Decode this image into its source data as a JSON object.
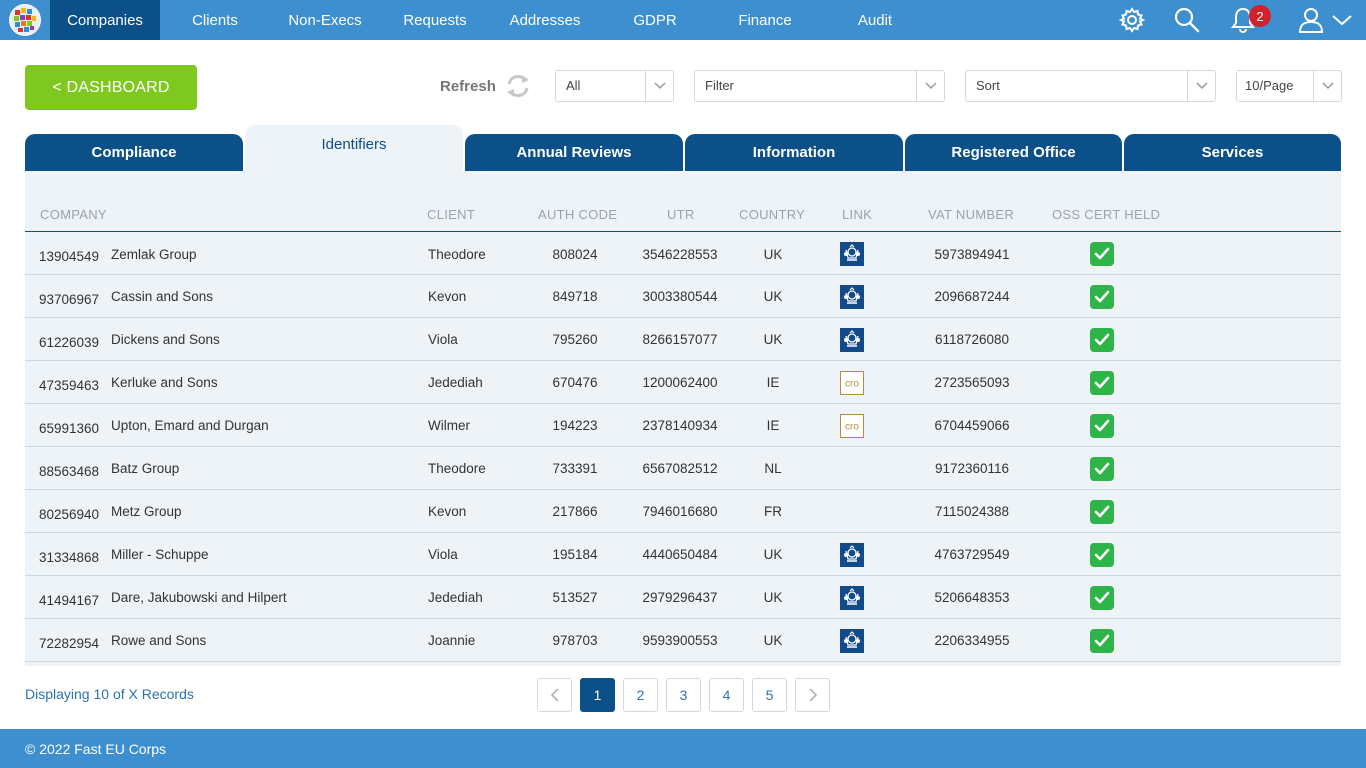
{
  "nav": {
    "items": [
      {
        "label": "Companies",
        "active": true
      },
      {
        "label": "Clients"
      },
      {
        "label": "Non-Execs"
      },
      {
        "label": "Requests"
      },
      {
        "label": "Addresses"
      },
      {
        "label": "GDPR"
      },
      {
        "label": "Finance"
      },
      {
        "label": "Audit"
      }
    ],
    "notification_count": "2",
    "icons": [
      "gear-icon",
      "search-icon",
      "bell-icon",
      "user-icon",
      "chevron-down-icon"
    ]
  },
  "toolbar": {
    "dashboard_label": "< DASHBOARD",
    "refresh_label": "Refresh",
    "all_select": "All",
    "filter_select": "Filter",
    "sort_select": "Sort",
    "per_page_select": "10/Page"
  },
  "tabs": [
    {
      "label": "Compliance"
    },
    {
      "label": "Identifiers",
      "active": true
    },
    {
      "label": "Annual Reviews"
    },
    {
      "label": "Information"
    },
    {
      "label": "Registered Office"
    },
    {
      "label": "Services"
    }
  ],
  "table": {
    "headers": {
      "company": "COMPANY",
      "client": "CLIENT",
      "auth_code": "AUTH CODE",
      "utr": "UTR",
      "country": "COUNTRY",
      "link": "LINK",
      "vat_number": "VAT NUMBER",
      "oss_cert_held": "OSS CERT HELD"
    },
    "rows": [
      {
        "number": "13904549",
        "name": "Zemlak Group",
        "client": "Theodore",
        "auth": "808024",
        "utr": "3546228553",
        "country": "UK",
        "link": "uk-crest-icon",
        "vat": "5973894941",
        "oss": true
      },
      {
        "number": "93706967",
        "name": "Cassin and Sons",
        "client": "Kevon",
        "auth": "849718",
        "utr": "3003380544",
        "country": "UK",
        "link": "uk-crest-icon",
        "vat": "2096687244",
        "oss": true
      },
      {
        "number": "61226039",
        "name": "Dickens and Sons",
        "client": "Viola",
        "auth": "795260",
        "utr": "8266157077",
        "country": "UK",
        "link": "uk-crest-icon",
        "vat": "6118726080",
        "oss": true
      },
      {
        "number": "47359463",
        "name": "Kerluke and Sons",
        "client": "Jedediah",
        "auth": "670476",
        "utr": "1200062400",
        "country": "IE",
        "link": "cro-icon",
        "vat": "2723565093",
        "oss": true
      },
      {
        "number": "65991360",
        "name": "Upton, Emard and Durgan",
        "client": "Wilmer",
        "auth": "194223",
        "utr": "2378140934",
        "country": "IE",
        "link": "cro-icon",
        "vat": "6704459066",
        "oss": true
      },
      {
        "number": "88563468",
        "name": "Batz Group",
        "client": "Theodore",
        "auth": "733391",
        "utr": "6567082512",
        "country": "NL",
        "link": "",
        "vat": "9172360116",
        "oss": true
      },
      {
        "number": "80256940",
        "name": "Metz Group",
        "client": "Kevon",
        "auth": "217866",
        "utr": "7946016680",
        "country": "FR",
        "link": "",
        "vat": "7115024388",
        "oss": true
      },
      {
        "number": "31334868",
        "name": "Miller - Schuppe",
        "client": "Viola",
        "auth": "195184",
        "utr": "4440650484",
        "country": "UK",
        "link": "uk-crest-icon",
        "vat": "4763729549",
        "oss": true
      },
      {
        "number": "41494167",
        "name": "Dare, Jakubowski and Hilpert",
        "client": "Jedediah",
        "auth": "513527",
        "utr": "2979296437",
        "country": "UK",
        "link": "uk-crest-icon",
        "vat": "5206648353",
        "oss": true
      },
      {
        "number": "72282954",
        "name": "Rowe and Sons",
        "client": "Joannie",
        "auth": "978703",
        "utr": "9593900553",
        "country": "UK",
        "link": "uk-crest-icon",
        "vat": "2206334955",
        "oss": true
      }
    ]
  },
  "pagination": {
    "displaying": "Displaying 10 of X Records",
    "pages": [
      "1",
      "2",
      "3",
      "4",
      "5"
    ],
    "current": "1"
  },
  "footer": {
    "copyright": "© 2022 Fast EU Corps"
  },
  "colors": {
    "nav_bg": "#3d8fcf",
    "nav_active": "#0b5088",
    "accent_green": "#7ec820",
    "check_green": "#2fb44a",
    "badge_red": "#d3202b"
  }
}
